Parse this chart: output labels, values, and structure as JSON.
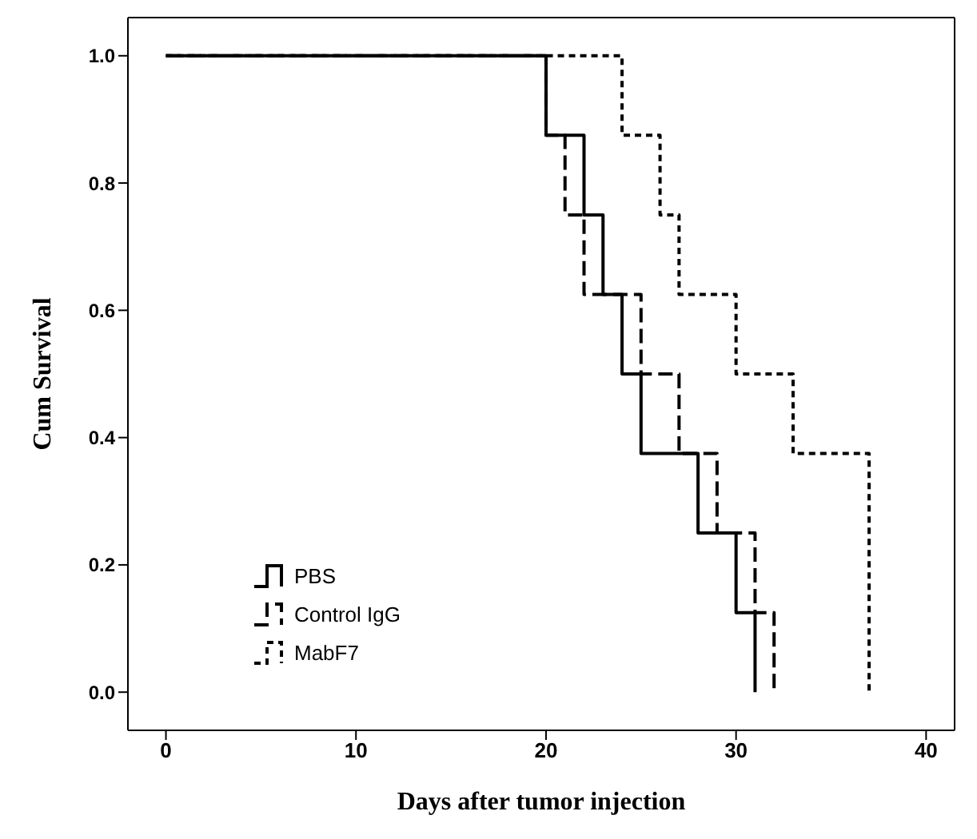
{
  "chart_data": {
    "type": "step",
    "xlabel": "Days after tumor injection",
    "ylabel": "Cum Survival",
    "xlim": [
      -2,
      41.5
    ],
    "ylim": [
      -0.06,
      1.06
    ],
    "xticks": [
      0,
      10,
      20,
      30,
      40
    ],
    "yticks": [
      {
        "value": 0,
        "label": "0.0"
      },
      {
        "value": 0.2,
        "label": "0.2"
      },
      {
        "value": 0.4,
        "label": "0.4"
      },
      {
        "value": 0.6,
        "label": "0.6"
      },
      {
        "value": 0.8,
        "label": "0.8"
      },
      {
        "value": 1,
        "label": "1.0"
      }
    ],
    "legend": "bottom left",
    "marker": "none",
    "series": [
      {
        "name": "PBS",
        "color": "#000000",
        "line_style": "solid",
        "x": [
          0,
          20,
          22,
          23,
          24,
          25,
          28,
          30,
          31
        ],
        "values": [
          1,
          0.875,
          0.75,
          0.625,
          0.5,
          0.375,
          0.25,
          0.125,
          0
        ]
      },
      {
        "name": "Control IgG",
        "color": "#000000",
        "line_style": "dashed",
        "x": [
          0,
          20,
          21,
          22,
          25,
          27,
          29,
          31,
          32
        ],
        "values": [
          1,
          0.875,
          0.75,
          0.625,
          0.5,
          0.375,
          0.25,
          0.125,
          0
        ]
      },
      {
        "name": "MabF7",
        "color": "#000000",
        "line_style": "dotted",
        "x": [
          0,
          24,
          26,
          27,
          30,
          33,
          37
        ],
        "values": [
          1,
          0.875,
          0.75,
          0.625,
          0.5,
          0.375,
          0
        ]
      }
    ]
  }
}
